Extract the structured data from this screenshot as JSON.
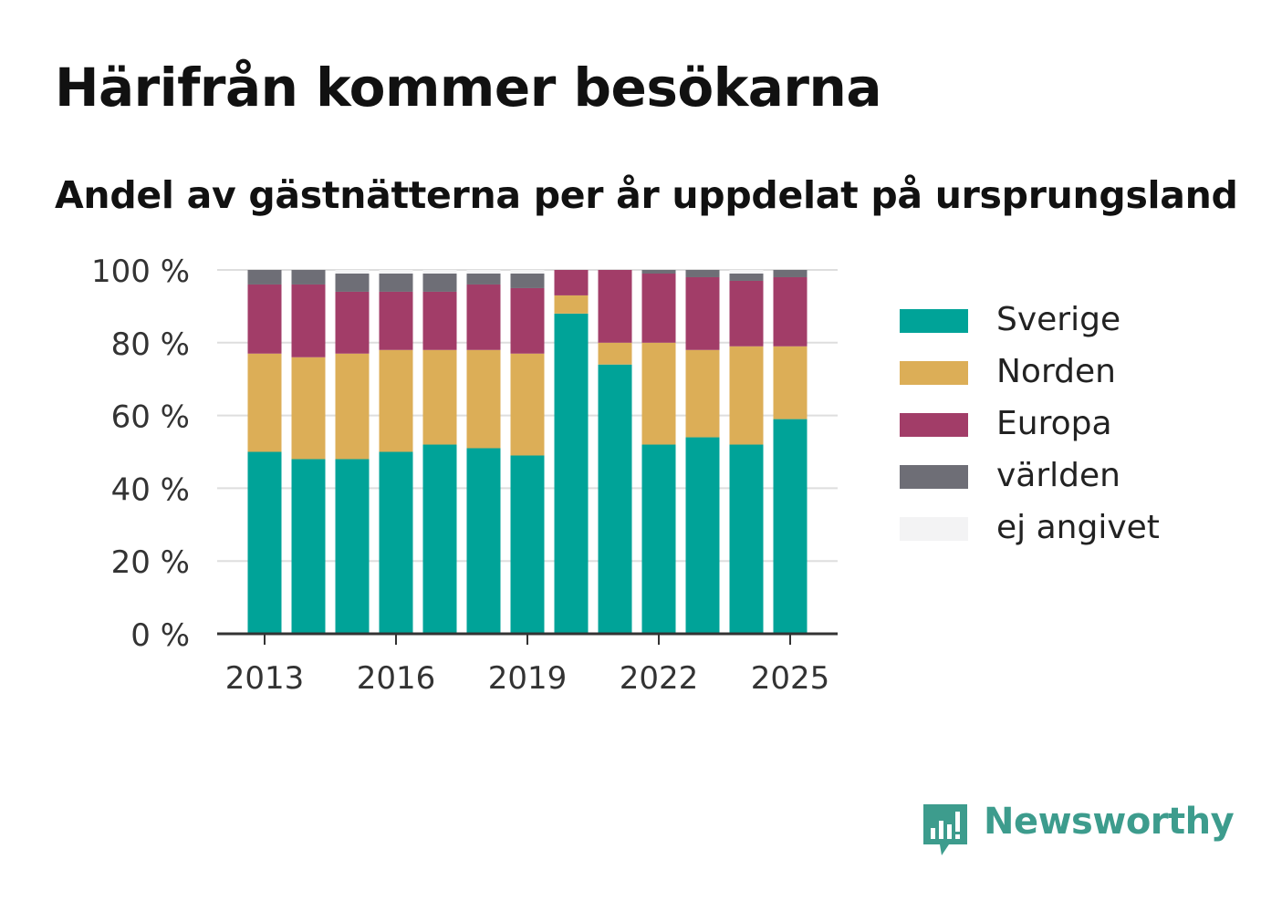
{
  "header": {
    "title": "Härifrån kommer besökarna",
    "subtitle": "Andel av gästnätterna per år uppdelat på ursprungsland"
  },
  "brand": {
    "name": "Newsworthy",
    "icon": "newsworthy-logo-icon",
    "color": "#3d9c8d"
  },
  "chart_data": {
    "type": "bar",
    "stacked": true,
    "title": "Härifrån kommer besökarna",
    "subtitle": "Andel av gästnätterna per år uppdelat på ursprungsland",
    "xlabel": "",
    "ylabel": "",
    "ylim": [
      0,
      100
    ],
    "y_ticks": [
      "0 %",
      "20 %",
      "40 %",
      "60 %",
      "80 %",
      "100 %"
    ],
    "y_tick_values": [
      0,
      20,
      40,
      60,
      80,
      100
    ],
    "x_ticks": [
      "2013",
      "2016",
      "2019",
      "2022",
      "2025"
    ],
    "x_tick_values": [
      2013,
      2016,
      2019,
      2022,
      2025
    ],
    "categories": [
      2013,
      2014,
      2015,
      2016,
      2017,
      2018,
      2019,
      2020,
      2021,
      2022,
      2023,
      2024,
      2025
    ],
    "grid": true,
    "legend_position": "right",
    "series": [
      {
        "name": "Sverige",
        "color": "#00a398",
        "values": [
          50,
          48,
          48,
          50,
          52,
          51,
          49,
          88,
          74,
          52,
          54,
          52,
          59
        ]
      },
      {
        "name": "Norden",
        "color": "#dcae57",
        "values": [
          27,
          28,
          29,
          28,
          26,
          27,
          28,
          5,
          6,
          28,
          24,
          27,
          20
        ]
      },
      {
        "name": "Europa",
        "color": "#a23d68",
        "values": [
          19,
          20,
          17,
          16,
          16,
          18,
          18,
          7,
          20,
          19,
          20,
          18,
          19
        ]
      },
      {
        "name": "världen",
        "color": "#6e6e76",
        "values": [
          4,
          4,
          5,
          5,
          5,
          3,
          4,
          0,
          0,
          1,
          2,
          2,
          2
        ]
      },
      {
        "name": "ej angivet",
        "color": "#f3f3f4",
        "values": [
          0,
          0,
          1,
          1,
          1,
          1,
          1,
          0,
          0,
          0,
          0,
          1,
          0
        ]
      }
    ]
  }
}
